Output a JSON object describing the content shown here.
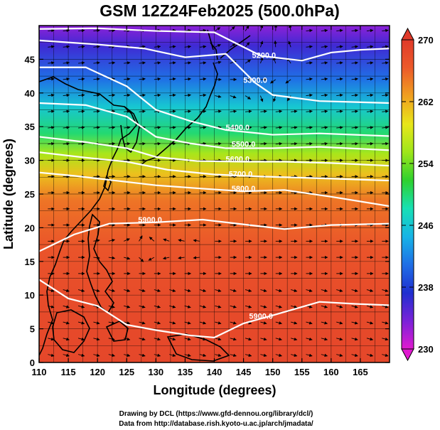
{
  "chart_data": {
    "type": "heatmap",
    "title": "GSM 12Z24Feb2025 (500.0hPa)",
    "xlabel": "Longitude (degrees)",
    "ylabel": "Latitude  (degrees)",
    "xlim": [
      110,
      170
    ],
    "ylim": [
      0,
      50
    ],
    "x_ticks": [
      110,
      115,
      120,
      125,
      130,
      135,
      140,
      145,
      150,
      155,
      160,
      165
    ],
    "y_ticks": [
      0,
      5,
      10,
      15,
      20,
      25,
      30,
      35,
      40,
      45
    ],
    "shaded_variable": "temperature (K)",
    "colorbar": {
      "min": 230,
      "max": 270,
      "ticks": [
        230,
        238,
        246,
        254,
        262,
        270
      ],
      "colors": [
        "#e01ad0",
        "#7a22d8",
        "#1f2fd0",
        "#1f6fe6",
        "#17b4e6",
        "#17e0b4",
        "#2ed12e",
        "#9ee61a",
        "#e8e61a",
        "#f0a020",
        "#ec5a2a",
        "#e03a2a"
      ]
    },
    "temperature_by_latitude": [
      {
        "lat": 0,
        "t": 268.5
      },
      {
        "lat": 10,
        "t": 268
      },
      {
        "lat": 17,
        "t": 267
      },
      {
        "lat": 24,
        "t": 265
      },
      {
        "lat": 28,
        "t": 261
      },
      {
        "lat": 31,
        "t": 256
      },
      {
        "lat": 34,
        "t": 250
      },
      {
        "lat": 38,
        "t": 246
      },
      {
        "lat": 42,
        "t": 241
      },
      {
        "lat": 47,
        "t": 236
      },
      {
        "lat": 50,
        "t": 233
      }
    ],
    "contour_labels": [
      {
        "text": "5200.0",
        "lon": 148.5,
        "lat": 45.2
      },
      {
        "text": "5300.0",
        "lon": 147.0,
        "lat": 41.5
      },
      {
        "text": "5400.0",
        "lon": 144.0,
        "lat": 34.5
      },
      {
        "text": "5500.0",
        "lon": 145.0,
        "lat": 32.0
      },
      {
        "text": "5600.0",
        "lon": 144.0,
        "lat": 29.8
      },
      {
        "text": "5700.0",
        "lon": 144.5,
        "lat": 27.6
      },
      {
        "text": "5800.0",
        "lon": 145.0,
        "lat": 25.4
      },
      {
        "text": "5900.0",
        "lon": 129.0,
        "lat": 20.8
      },
      {
        "text": "5900.0",
        "lon": 148.0,
        "lat": 6.5
      }
    ],
    "contour_lines": [
      {
        "value": 5200,
        "points": [
          [
            110,
            49.5
          ],
          [
            120,
            49.6
          ],
          [
            130,
            49.2
          ],
          [
            140,
            49.0
          ],
          [
            148,
            45.5
          ],
          [
            155,
            44.8
          ],
          [
            160,
            46
          ],
          [
            165,
            46.4
          ],
          [
            170,
            46.6
          ]
        ]
      },
      {
        "value": 5300,
        "points": [
          [
            110,
            47.8
          ],
          [
            120,
            47.2
          ],
          [
            128,
            46.6
          ],
          [
            135,
            45.3
          ],
          [
            142,
            45.8
          ],
          [
            147,
            41.5
          ],
          [
            150,
            39.7
          ],
          [
            158,
            38.8
          ],
          [
            170,
            38.5
          ]
        ]
      },
      {
        "value": 5400,
        "points": [
          [
            110,
            43.8
          ],
          [
            118,
            43.8
          ],
          [
            125,
            41
          ],
          [
            130,
            37.5
          ],
          [
            136,
            35.8
          ],
          [
            142,
            34.5
          ],
          [
            150,
            33.8
          ],
          [
            158,
            34
          ],
          [
            170,
            33.6
          ]
        ]
      },
      {
        "value": 5500,
        "points": [
          [
            110,
            38.5
          ],
          [
            118,
            38.2
          ],
          [
            125,
            36.5
          ],
          [
            130,
            33.5
          ],
          [
            136,
            32.5
          ],
          [
            142,
            31.8
          ],
          [
            150,
            31.8
          ],
          [
            158,
            32
          ],
          [
            170,
            31.5
          ]
        ]
      },
      {
        "value": 5600,
        "points": [
          [
            110,
            33.5
          ],
          [
            118,
            32.7
          ],
          [
            125,
            31.8
          ],
          [
            130,
            30.5
          ],
          [
            137,
            29.9
          ],
          [
            145,
            29.8
          ],
          [
            152,
            29.8
          ],
          [
            160,
            29.6
          ],
          [
            170,
            29.2
          ]
        ]
      },
      {
        "value": 5700,
        "points": [
          [
            110,
            31.2
          ],
          [
            118,
            30.4
          ],
          [
            125,
            29.8
          ],
          [
            132,
            28.6
          ],
          [
            140,
            27.9
          ],
          [
            148,
            27.6
          ],
          [
            156,
            27.4
          ],
          [
            170,
            27.0
          ]
        ]
      },
      {
        "value": 5800,
        "points": [
          [
            110,
            28.2
          ],
          [
            116,
            27.7
          ],
          [
            122,
            27.1
          ],
          [
            130,
            26.3
          ],
          [
            138,
            25.8
          ],
          [
            145,
            25.4
          ],
          [
            152,
            25.6
          ],
          [
            160,
            24.6
          ],
          [
            170,
            23.2
          ]
        ]
      },
      {
        "value": 5900,
        "points": [
          [
            110,
            16.5
          ],
          [
            116,
            19.0
          ],
          [
            122,
            20.6
          ],
          [
            130,
            20.8
          ],
          [
            138,
            21.2
          ],
          [
            146,
            20.4
          ],
          [
            152,
            19.8
          ],
          [
            160,
            20.4
          ],
          [
            170,
            20.6
          ]
        ]
      },
      {
        "value": 5900,
        "points": [
          [
            110,
            12.3
          ],
          [
            115,
            9.5
          ],
          [
            120,
            8.4
          ],
          [
            125,
            5.6
          ],
          [
            130,
            4.8
          ],
          [
            136,
            4.0
          ],
          [
            140,
            3.7
          ],
          [
            145,
            5.8
          ],
          [
            150,
            7.0
          ],
          [
            158,
            9.0
          ],
          [
            164,
            8.7
          ],
          [
            170,
            8.5
          ]
        ]
      }
    ],
    "credits": [
      "Drawing by DCL (https://www.gfd-dennou.org/library/dcl/)",
      "Data from http://database.rish.kyoto-u.ac.jp/arch/jmadata/"
    ]
  }
}
